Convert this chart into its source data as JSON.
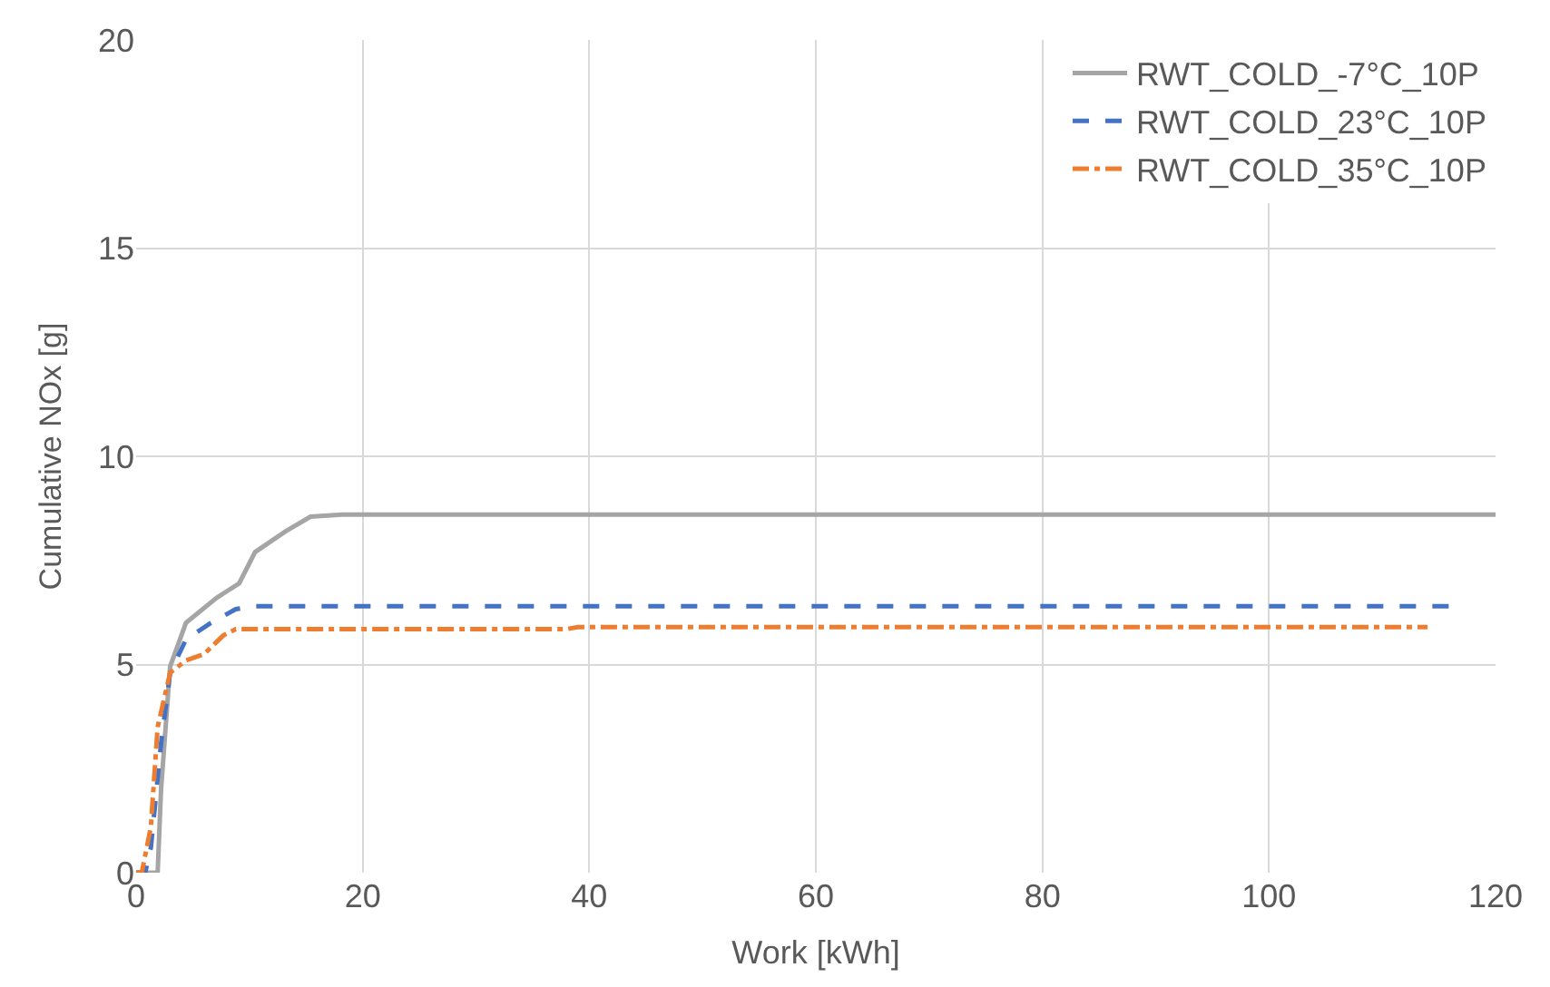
{
  "chart_data": {
    "type": "line",
    "xlabel": "Work [kWh]",
    "ylabel": "Cumulative NOx [g]",
    "xlim": [
      0,
      120
    ],
    "xticks": [
      0,
      20,
      40,
      60,
      80,
      100,
      120
    ],
    "ylim": [
      0,
      20
    ],
    "yticks": [
      0,
      5,
      10,
      15,
      20
    ],
    "grid": true,
    "legend": "top right",
    "marker": "none",
    "series": [
      {
        "name": "RWT_COLD_-7°C_10P",
        "color": "#a5a5a5",
        "line_style": "solid",
        "x": [
          0,
          1.9,
          2.2,
          3.0,
          4.4,
          7.1,
          9.1,
          10.5,
          13.2,
          15.4,
          18.2,
          120
        ],
        "values": [
          0,
          0,
          2.0,
          4.95,
          6.0,
          6.6,
          6.95,
          7.7,
          8.2,
          8.55,
          8.6,
          8.6
        ]
      },
      {
        "name": "RWT_COLD_23°C_10P",
        "color": "#4472c4",
        "line_style": "dashed",
        "x": [
          0,
          0.8,
          1.3,
          2.2,
          3.0,
          4.4,
          6.6,
          8.8,
          10.5,
          116
        ],
        "values": [
          0,
          0,
          0.6,
          3.1,
          4.8,
          5.6,
          6.0,
          6.33,
          6.4,
          6.4
        ]
      },
      {
        "name": "RWT_COLD_35°C_10P",
        "color": "#ed7d31",
        "line_style": "dashdot",
        "x": [
          0,
          0.5,
          1.3,
          1.9,
          3.0,
          4.4,
          6.0,
          7.7,
          8.8,
          38,
          39,
          114
        ],
        "values": [
          0,
          0,
          1.1,
          3.5,
          4.8,
          5.1,
          5.25,
          5.7,
          5.85,
          5.85,
          5.9,
          5.9
        ]
      }
    ]
  }
}
